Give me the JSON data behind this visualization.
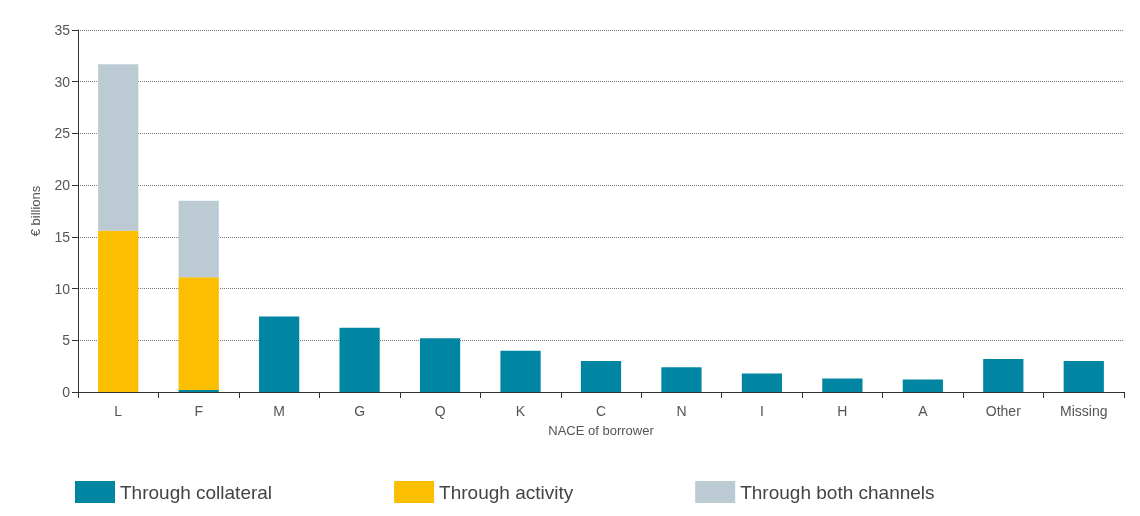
{
  "chart_data": {
    "type": "bar",
    "stacked": true,
    "xlabel": "NACE of borrower",
    "ylabel": "€ billions",
    "categories": [
      "L",
      "F",
      "M",
      "G",
      "Q",
      "K",
      "C",
      "N",
      "I",
      "H",
      "A",
      "Other",
      "Missing"
    ],
    "series": [
      {
        "name": "Through collateral",
        "color": "#0086a3",
        "values": [
          0,
          0.2,
          7.3,
          6.2,
          5.2,
          4.0,
          3.0,
          2.4,
          1.8,
          1.3,
          1.2,
          3.2,
          3.0
        ]
      },
      {
        "name": "Through activity",
        "color": "#fbbe00",
        "values": [
          15.6,
          10.9,
          0,
          0,
          0,
          0,
          0,
          0,
          0,
          0,
          0,
          0,
          0
        ]
      },
      {
        "name": "Through both channels",
        "color": "#bccbd3",
        "values": [
          16.1,
          7.4,
          0,
          0,
          0,
          0,
          0,
          0,
          0,
          0,
          0,
          0,
          0
        ]
      }
    ],
    "ylim": [
      0,
      35
    ],
    "yticks": [
      0,
      5,
      10,
      15,
      20,
      25,
      30,
      35
    ],
    "grid": "y",
    "legend": "bottom"
  }
}
